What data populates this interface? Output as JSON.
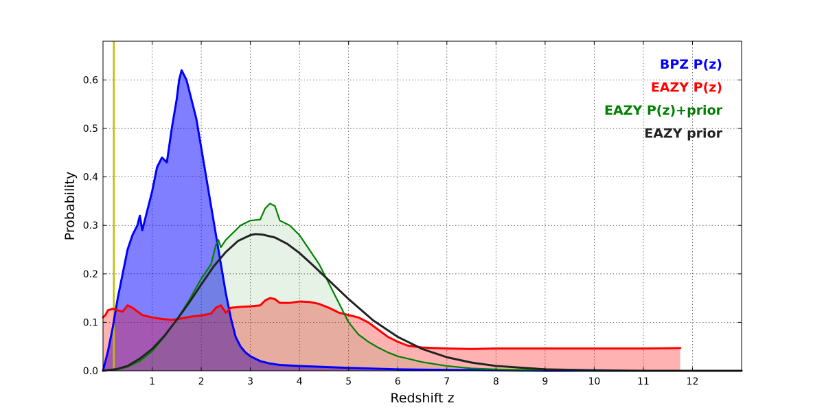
{
  "chart_data": {
    "type": "area",
    "title": "",
    "xlabel": "Redshift z",
    "ylabel": "Probability",
    "xlim": [
      0,
      13
    ],
    "ylim": [
      0,
      0.68
    ],
    "x_ticks": [
      1,
      2,
      3,
      4,
      5,
      6,
      7,
      8,
      9,
      10,
      11,
      12
    ],
    "y_ticks": [
      0.0,
      0.1,
      0.2,
      0.3,
      0.4,
      0.5,
      0.6
    ],
    "y_tick_labels": [
      "0.0",
      "0.1",
      "0.2",
      "0.3",
      "0.4",
      "0.5",
      "0.6"
    ],
    "grid": true,
    "legend_position": "top-right",
    "vertical_marker": {
      "x": 0.22,
      "color": "#bfbf00"
    },
    "series": [
      {
        "name": "BPZ P(z)",
        "color": "#0000ff",
        "fill": "#0000ff",
        "fill_opacity": 0.5,
        "line_width": 3,
        "x": [
          0.0,
          0.1,
          0.2,
          0.3,
          0.4,
          0.5,
          0.6,
          0.7,
          0.75,
          0.8,
          0.9,
          1.0,
          1.1,
          1.2,
          1.3,
          1.4,
          1.5,
          1.55,
          1.6,
          1.7,
          1.8,
          1.9,
          2.0,
          2.1,
          2.2,
          2.3,
          2.4,
          2.5,
          2.6,
          2.7,
          2.8,
          2.9,
          3.0,
          3.2,
          3.4,
          3.6,
          3.8,
          4.0,
          5.0,
          6.0,
          7.0,
          8.0,
          9.0,
          10.0,
          11.0,
          12.0,
          13.0
        ],
        "values": [
          0.0,
          0.04,
          0.09,
          0.15,
          0.2,
          0.25,
          0.28,
          0.3,
          0.32,
          0.29,
          0.33,
          0.37,
          0.42,
          0.44,
          0.43,
          0.5,
          0.56,
          0.6,
          0.62,
          0.6,
          0.56,
          0.52,
          0.46,
          0.4,
          0.34,
          0.28,
          0.22,
          0.16,
          0.11,
          0.07,
          0.05,
          0.038,
          0.03,
          0.02,
          0.015,
          0.012,
          0.011,
          0.01,
          0.006,
          0.003,
          0.002,
          0.001,
          0.0,
          0.0,
          0.0,
          0.0,
          0.0
        ]
      },
      {
        "name": "EAZY P(z)",
        "color": "#ff0000",
        "fill": "#ff0000",
        "fill_opacity": 0.3,
        "line_width": 3,
        "x": [
          0.0,
          0.05,
          0.1,
          0.2,
          0.4,
          0.5,
          0.6,
          0.8,
          1.0,
          1.2,
          1.4,
          1.6,
          1.8,
          2.0,
          2.2,
          2.3,
          2.4,
          2.5,
          2.6,
          2.8,
          3.0,
          3.2,
          3.3,
          3.4,
          3.5,
          3.6,
          3.8,
          4.0,
          4.2,
          4.4,
          4.6,
          4.8,
          5.0,
          5.2,
          5.4,
          5.6,
          5.8,
          6.0,
          6.2,
          6.5,
          7.0,
          7.5,
          8.0,
          8.5,
          9.0,
          10.0,
          11.0,
          11.75
        ],
        "values": [
          0.11,
          0.115,
          0.125,
          0.128,
          0.122,
          0.135,
          0.13,
          0.115,
          0.11,
          0.107,
          0.105,
          0.108,
          0.112,
          0.114,
          0.118,
          0.13,
          0.135,
          0.12,
          0.13,
          0.132,
          0.133,
          0.135,
          0.145,
          0.15,
          0.148,
          0.14,
          0.14,
          0.143,
          0.142,
          0.138,
          0.13,
          0.12,
          0.115,
          0.11,
          0.1,
          0.085,
          0.07,
          0.06,
          0.052,
          0.048,
          0.046,
          0.045,
          0.046,
          0.046,
          0.046,
          0.046,
          0.046,
          0.047
        ]
      },
      {
        "name": "EAZY P(z)+prior",
        "color": "#008000",
        "fill": "#008000",
        "fill_opacity": 0.1,
        "line_width": 2.2,
        "x": [
          0.0,
          0.3,
          0.5,
          0.75,
          1.0,
          1.25,
          1.5,
          1.75,
          2.0,
          2.2,
          2.3,
          2.35,
          2.4,
          2.5,
          2.6,
          2.8,
          3.0,
          3.2,
          3.3,
          3.4,
          3.5,
          3.6,
          3.8,
          4.0,
          4.2,
          4.4,
          4.6,
          4.8,
          5.0,
          5.2,
          5.4,
          5.6,
          5.8,
          6.0,
          6.5,
          7.0,
          7.5,
          8.0,
          9.0,
          10.0,
          13.0
        ],
        "values": [
          0.0,
          0.003,
          0.008,
          0.02,
          0.04,
          0.07,
          0.105,
          0.145,
          0.19,
          0.22,
          0.26,
          0.27,
          0.255,
          0.27,
          0.28,
          0.3,
          0.31,
          0.312,
          0.335,
          0.345,
          0.34,
          0.31,
          0.3,
          0.28,
          0.25,
          0.22,
          0.18,
          0.14,
          0.1,
          0.075,
          0.06,
          0.048,
          0.038,
          0.03,
          0.018,
          0.01,
          0.005,
          0.003,
          0.001,
          0.0,
          0.0
        ]
      },
      {
        "name": "EAZY prior",
        "color": "#222222",
        "fill": "none",
        "fill_opacity": 0,
        "line_width": 3,
        "x": [
          0.0,
          0.3,
          0.5,
          0.75,
          1.0,
          1.25,
          1.5,
          1.75,
          2.0,
          2.25,
          2.5,
          2.75,
          3.0,
          3.1,
          3.25,
          3.5,
          3.75,
          4.0,
          4.25,
          4.5,
          4.75,
          5.0,
          5.5,
          6.0,
          6.5,
          7.0,
          7.5,
          8.0,
          9.0,
          10.0,
          11.0,
          13.0
        ],
        "values": [
          0.0,
          0.004,
          0.01,
          0.025,
          0.045,
          0.072,
          0.105,
          0.14,
          0.178,
          0.215,
          0.245,
          0.268,
          0.28,
          0.282,
          0.281,
          0.275,
          0.262,
          0.243,
          0.22,
          0.196,
          0.172,
          0.148,
          0.104,
          0.07,
          0.045,
          0.028,
          0.017,
          0.01,
          0.003,
          0.001,
          0.0,
          0.0
        ]
      }
    ]
  }
}
